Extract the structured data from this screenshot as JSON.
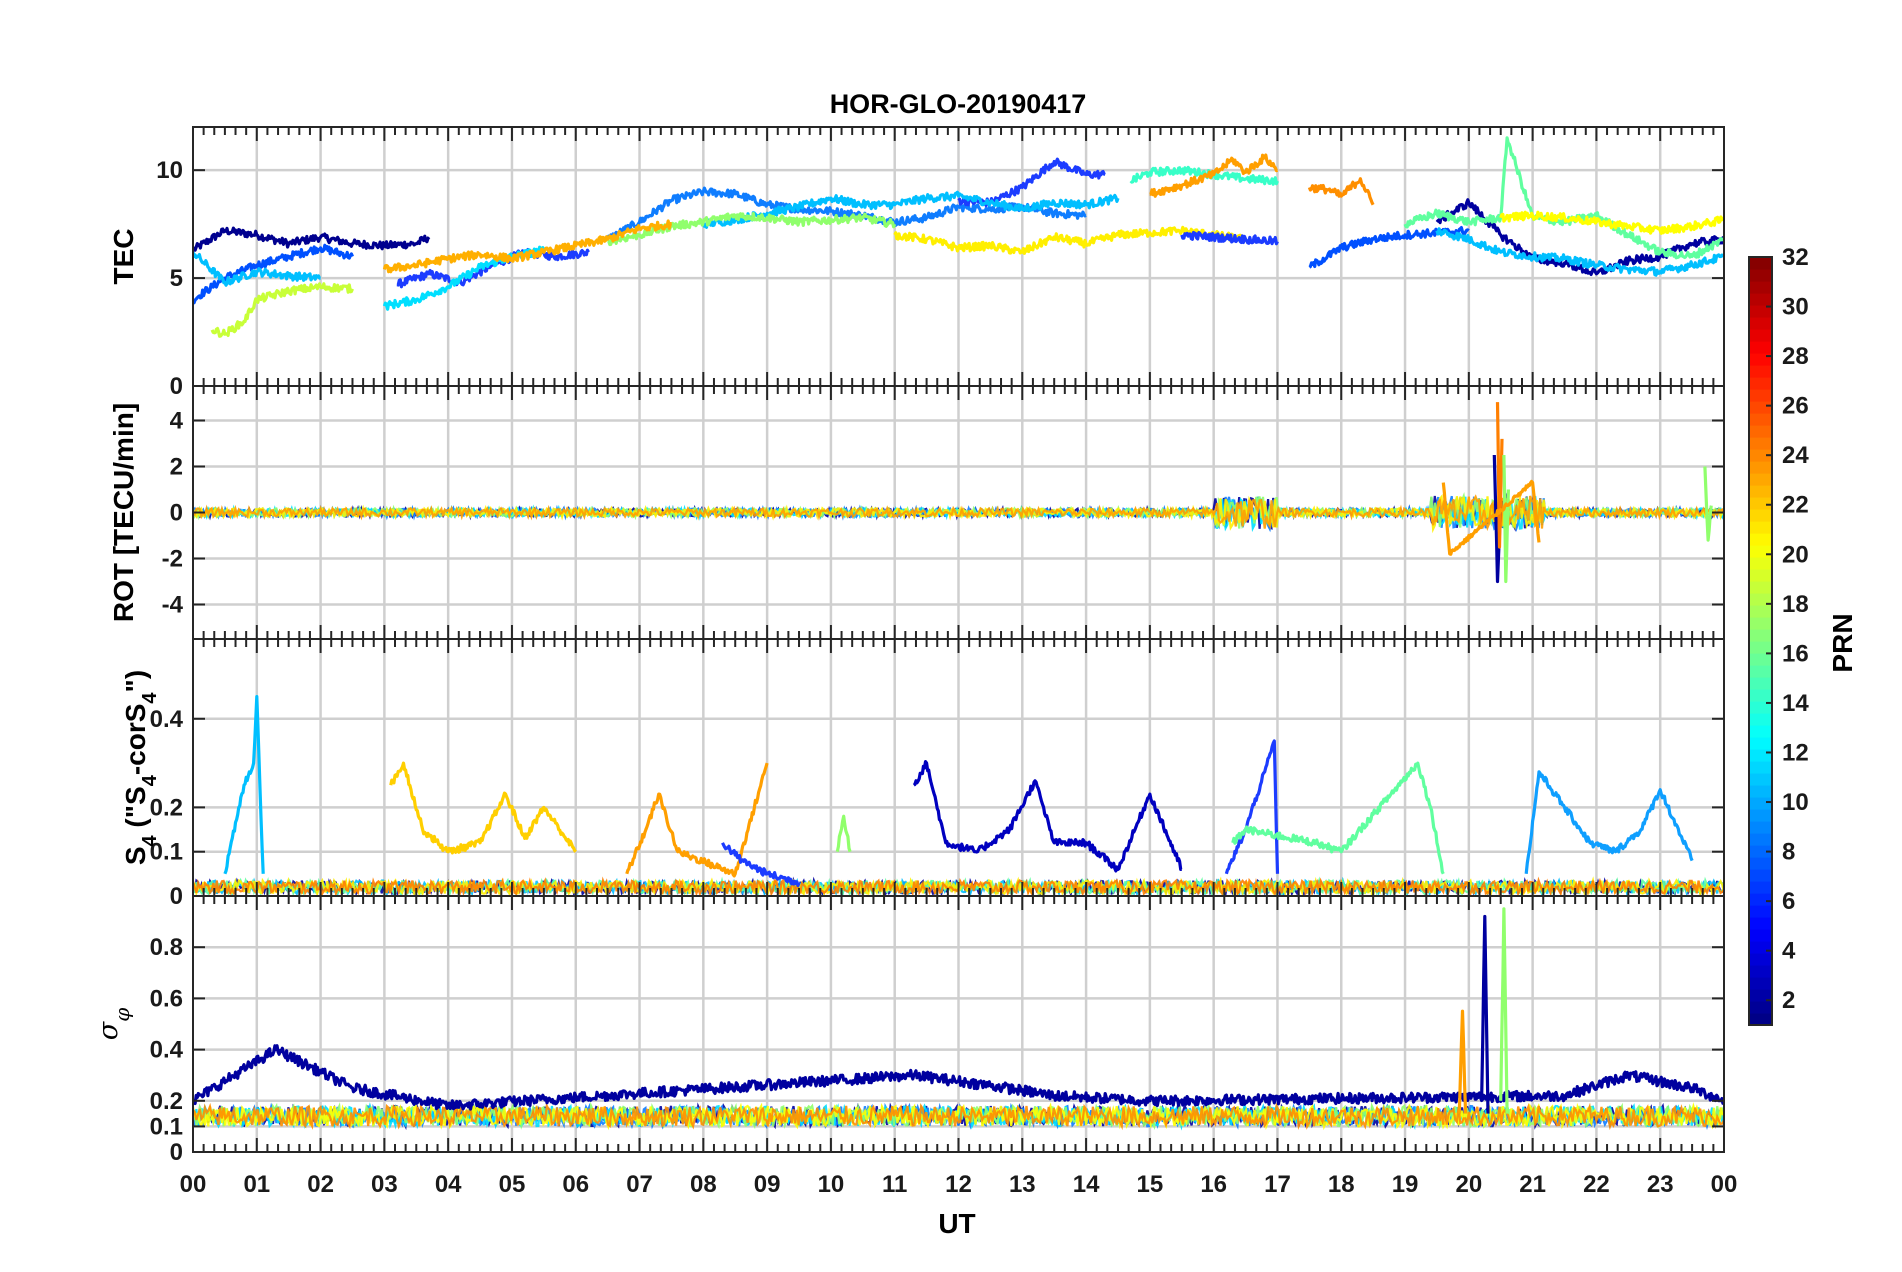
{
  "chart_data": {
    "type": "line",
    "title": "HOR-GLO-20190417",
    "xlabel": "UT",
    "x_tick_labels": [
      "00",
      "01",
      "02",
      "03",
      "04",
      "05",
      "06",
      "07",
      "08",
      "09",
      "10",
      "11",
      "12",
      "13",
      "14",
      "15",
      "16",
      "17",
      "18",
      "19",
      "20",
      "21",
      "22",
      "23",
      "00"
    ],
    "xlim": [
      0,
      24
    ],
    "grid": true,
    "colorbar": {
      "label": "PRN",
      "range": [
        1,
        32
      ],
      "tick_labels": [
        "2",
        "4",
        "6",
        "8",
        "10",
        "12",
        "14",
        "16",
        "18",
        "20",
        "22",
        "24",
        "26",
        "28",
        "30",
        "32"
      ],
      "colormap": "jet"
    },
    "panels": [
      {
        "ylabel": "TEC",
        "ylim": [
          0,
          12
        ],
        "yticks": [
          0,
          5,
          10
        ],
        "series": [
          {
            "color": "#00008f",
            "x": [
              0,
              0.5,
              1,
              1.5,
              2,
              2.5,
              3,
              3.5,
              3.7
            ],
            "y": [
              6.3,
              7.2,
              7.0,
              6.6,
              6.9,
              6.6,
              6.5,
              6.6,
              6.9
            ]
          },
          {
            "color": "#1c3cff",
            "x": [
              3.2,
              3.7,
              4.2,
              4.7,
              5.2,
              5.7,
              6.2
            ],
            "y": [
              4.7,
              5.2,
              4.8,
              5.6,
              6.2,
              6.0,
              6.2
            ]
          },
          {
            "color": "#0050ff",
            "x": [
              0,
              0.5,
              1,
              1.5,
              2,
              2.5
            ],
            "y": [
              4.0,
              5.0,
              5.6,
              6.0,
              6.4,
              6.0
            ]
          },
          {
            "color": "#0f7dff",
            "x": [
              6.5,
              7,
              7.5,
              8,
              8.5,
              9,
              9.5,
              10,
              10.5,
              11,
              11.5,
              12,
              12.5,
              13,
              13.5,
              14
            ],
            "y": [
              6.8,
              7.6,
              8.6,
              9.0,
              8.9,
              8.4,
              8.2,
              8.1,
              7.9,
              7.6,
              7.8,
              8.3,
              8.2,
              8.3,
              8.0,
              7.9
            ]
          },
          {
            "color": "#1c3cff",
            "x": [
              12,
              12.5,
              13,
              13.5,
              14,
              14.3
            ],
            "y": [
              8.6,
              8.5,
              9.2,
              10.4,
              9.8,
              9.8
            ]
          },
          {
            "color": "#00bfff",
            "x": [
              0,
              0.5,
              1,
              1.5,
              2
            ],
            "y": [
              6.2,
              4.8,
              5.3,
              5.1,
              5.0
            ]
          },
          {
            "color": "#00bfff",
            "x": [
              8,
              8.5,
              9,
              9.5,
              10,
              10.5,
              11,
              11.5,
              12,
              12.5,
              13,
              13.5,
              14,
              14.5
            ],
            "y": [
              7.5,
              7.7,
              8.0,
              8.3,
              8.7,
              8.4,
              8.4,
              8.7,
              8.8,
              8.5,
              8.2,
              8.5,
              8.4,
              8.7
            ]
          },
          {
            "color": "#38ffc8",
            "x": [
              14.7,
              15,
              15.5,
              16,
              16.5,
              17
            ],
            "y": [
              9.5,
              9.9,
              10.0,
              9.8,
              9.6,
              9.5
            ]
          },
          {
            "color": "#00dfff",
            "x": [
              3,
              3.5,
              4,
              4.5,
              5,
              5.5
            ],
            "y": [
              3.7,
              4.0,
              4.6,
              5.5,
              6.0,
              6.3
            ]
          },
          {
            "color": "#90ff6c",
            "x": [
              6.5,
              7,
              7.5,
              8,
              8.5,
              9,
              9.5,
              10,
              10.5,
              11
            ],
            "y": [
              6.7,
              7.0,
              7.4,
              7.6,
              7.9,
              7.8,
              7.6,
              7.7,
              7.8,
              7.5
            ]
          },
          {
            "color": "#c8ff38",
            "x": [
              0.3,
              0.5,
              0.8,
              1,
              1.5,
              2,
              2.5
            ],
            "y": [
              2.6,
              2.4,
              3.0,
              4.0,
              4.4,
              4.6,
              4.5
            ]
          },
          {
            "color": "#ffef00",
            "x": [
              11,
              11.5,
              12,
              12.5,
              13,
              13.5,
              14,
              14.5,
              15,
              15.5,
              16,
              16.5
            ],
            "y": [
              7.0,
              6.8,
              6.4,
              6.5,
              6.2,
              6.9,
              6.6,
              7.0,
              7.1,
              7.2,
              7.0,
              6.8
            ]
          },
          {
            "color": "#ffaf00",
            "x": [
              3,
              3.5,
              4,
              4.5,
              5,
              5.5,
              6,
              6.5,
              7,
              7.5
            ],
            "y": [
              5.4,
              5.6,
              5.9,
              6.1,
              5.9,
              6.2,
              6.5,
              6.8,
              7.3,
              7.5
            ]
          },
          {
            "color": "#ff9f00",
            "x": [
              15,
              15.5,
              16,
              16.3,
              16.5,
              16.8,
              17
            ],
            "y": [
              8.9,
              9.3,
              9.8,
              10.5,
              9.9,
              10.6,
              10.0
            ]
          },
          {
            "color": "#ff8f00",
            "x": [
              17.5,
              17.8,
              18,
              18.3,
              18.5
            ],
            "y": [
              9.2,
              9.1,
              8.8,
              9.6,
              8.4
            ]
          },
          {
            "color": "#1c3cff",
            "x": [
              15.5,
              16,
              16.5,
              17
            ],
            "y": [
              7.0,
              6.9,
              6.8,
              6.7
            ]
          },
          {
            "color": "#0050ff",
            "x": [
              17.5,
              18,
              18.5,
              19,
              19.5,
              20
            ],
            "y": [
              5.5,
              6.4,
              6.8,
              7.0,
              7.1,
              7.2
            ]
          },
          {
            "color": "#00009f",
            "x": [
              19.5,
              20,
              20.5,
              21,
              21.5,
              22,
              22.5,
              23,
              23.5,
              24
            ],
            "y": [
              7.6,
              8.5,
              7.0,
              5.9,
              5.7,
              5.2,
              5.8,
              6.0,
              6.6,
              6.8
            ]
          },
          {
            "color": "#60ff9f",
            "x": [
              19,
              19.5,
              20,
              20.5,
              20.6,
              21,
              21.5,
              22,
              22.5,
              23,
              23.5,
              24
            ],
            "y": [
              7.5,
              8.0,
              7.6,
              7.8,
              11.5,
              7.8,
              7.6,
              7.9,
              7.0,
              6.2,
              6.0,
              6.8
            ]
          },
          {
            "color": "#00bfff",
            "x": [
              19.5,
              20,
              20.5,
              21,
              21.5,
              22,
              22.5,
              23,
              23.5,
              24
            ],
            "y": [
              7.2,
              6.8,
              6.2,
              6.0,
              5.9,
              5.6,
              5.4,
              5.3,
              5.6,
              6.0
            ]
          },
          {
            "color": "#ffff00",
            "x": [
              20.5,
              21,
              21.5,
              22,
              22.5,
              23,
              23.5,
              24
            ],
            "y": [
              7.8,
              7.9,
              7.8,
              7.6,
              7.4,
              7.2,
              7.4,
              7.7
            ]
          }
        ]
      },
      {
        "ylabel": "ROT [TECU/min]",
        "ylim": [
          -5.5,
          5.5
        ],
        "yticks": [
          -4,
          -2,
          0,
          2,
          4
        ],
        "series": [
          {
            "color": "#00009f",
            "x": [
              20.4,
              20.45,
              20.5
            ],
            "y": [
              2.5,
              -3.0,
              0.5
            ]
          },
          {
            "color": "#ff7f00",
            "x": [
              20.45,
              20.48,
              20.52
            ],
            "y": [
              4.8,
              -1.5,
              3.2
            ]
          },
          {
            "color": "#90ff6c",
            "x": [
              20.55,
              20.58,
              20.62
            ],
            "y": [
              2.5,
              -3.0,
              1.0
            ]
          },
          {
            "color": "#ff9f00",
            "x": [
              19.6,
              19.7,
              21.0,
              21.1
            ],
            "y": [
              1.3,
              -1.8,
              1.3,
              -1.3
            ]
          },
          {
            "color": "#90ff6c",
            "x": [
              23.7,
              23.75,
              23.8
            ],
            "y": [
              2.0,
              -1.2,
              0.3
            ]
          }
        ]
      },
      {
        "ylabel": "S₄ (\"S₄-corS₄\")",
        "ylim": [
          0,
          0.58
        ],
        "yticks": [
          0,
          0.1,
          0.2,
          0.4
        ],
        "series": [
          {
            "color": "#00bfff",
            "x": [
              0.5,
              0.8,
              0.95,
              1.0,
              1.1
            ],
            "y": [
              0.05,
              0.25,
              0.3,
              0.45,
              0.05
            ]
          },
          {
            "color": "#ffcf00",
            "x": [
              3.1,
              3.3,
              3.6,
              4.0,
              4.5,
              4.9,
              5.2,
              5.5,
              6.0
            ],
            "y": [
              0.25,
              0.3,
              0.15,
              0.1,
              0.12,
              0.23,
              0.13,
              0.2,
              0.1
            ]
          },
          {
            "color": "#ff9f00",
            "x": [
              6.8,
              7.1,
              7.3,
              7.6,
              8.5,
              8.8,
              9.0
            ],
            "y": [
              0.05,
              0.15,
              0.23,
              0.1,
              0.05,
              0.2,
              0.3
            ]
          },
          {
            "color": "#1c3cff",
            "x": [
              8.3,
              8.6,
              9.0,
              9.5
            ],
            "y": [
              0.12,
              0.08,
              0.05,
              0.03
            ]
          },
          {
            "color": "#0000bf",
            "x": [
              11.3,
              11.5,
              11.8,
              12.3,
              12.8,
              13.2,
              13.5,
              14.0,
              14.5,
              15.0,
              15.5
            ],
            "y": [
              0.25,
              0.3,
              0.12,
              0.1,
              0.15,
              0.26,
              0.12,
              0.12,
              0.06,
              0.23,
              0.06
            ]
          },
          {
            "color": "#1c3cff",
            "x": [
              16.2,
              16.5,
              16.8,
              16.95,
              17.0
            ],
            "y": [
              0.05,
              0.15,
              0.28,
              0.35,
              0.05
            ]
          },
          {
            "color": "#60ff9f",
            "x": [
              16.3,
              16.5,
              17.6,
              18.0,
              19.2,
              19.4,
              19.6
            ],
            "y": [
              0.12,
              0.15,
              0.12,
              0.1,
              0.3,
              0.2,
              0.05
            ]
          },
          {
            "color": "#0f9fff",
            "x": [
              20.9,
              21.1,
              21.5,
              21.9,
              22.3,
              22.7,
              23.0,
              23.5
            ],
            "y": [
              0.05,
              0.28,
              0.2,
              0.12,
              0.1,
              0.15,
              0.24,
              0.08
            ]
          },
          {
            "color": "#90ff6c",
            "x": [
              10.1,
              10.2,
              10.3
            ],
            "y": [
              0.1,
              0.18,
              0.1
            ]
          }
        ]
      },
      {
        "ylabel": "σ_φ",
        "ylim": [
          0,
          1.0
        ],
        "yticks": [
          0,
          0.1,
          0.2,
          0.4,
          0.6,
          0.8
        ],
        "series": [
          {
            "color": "#00009f",
            "x": [
              0,
              1.3,
              2.5,
              4.0,
              11.3,
              12.5,
              13.5,
              15.0,
              21.5,
              22.5,
              23.5,
              24
            ],
            "y": [
              0.2,
              0.4,
              0.25,
              0.18,
              0.3,
              0.26,
              0.22,
              0.2,
              0.22,
              0.3,
              0.25,
              0.2
            ]
          },
          {
            "color": "#00009f",
            "x": [
              20.2,
              20.25,
              20.3
            ],
            "y": [
              0.2,
              0.92,
              0.15
            ]
          },
          {
            "color": "#90ff6c",
            "x": [
              20.5,
              20.55,
              20.6
            ],
            "y": [
              0.2,
              0.95,
              0.15
            ]
          },
          {
            "color": "#ff9f00",
            "x": [
              19.85,
              19.9,
              19.95
            ],
            "y": [
              0.15,
              0.55,
              0.15
            ]
          }
        ]
      }
    ]
  }
}
